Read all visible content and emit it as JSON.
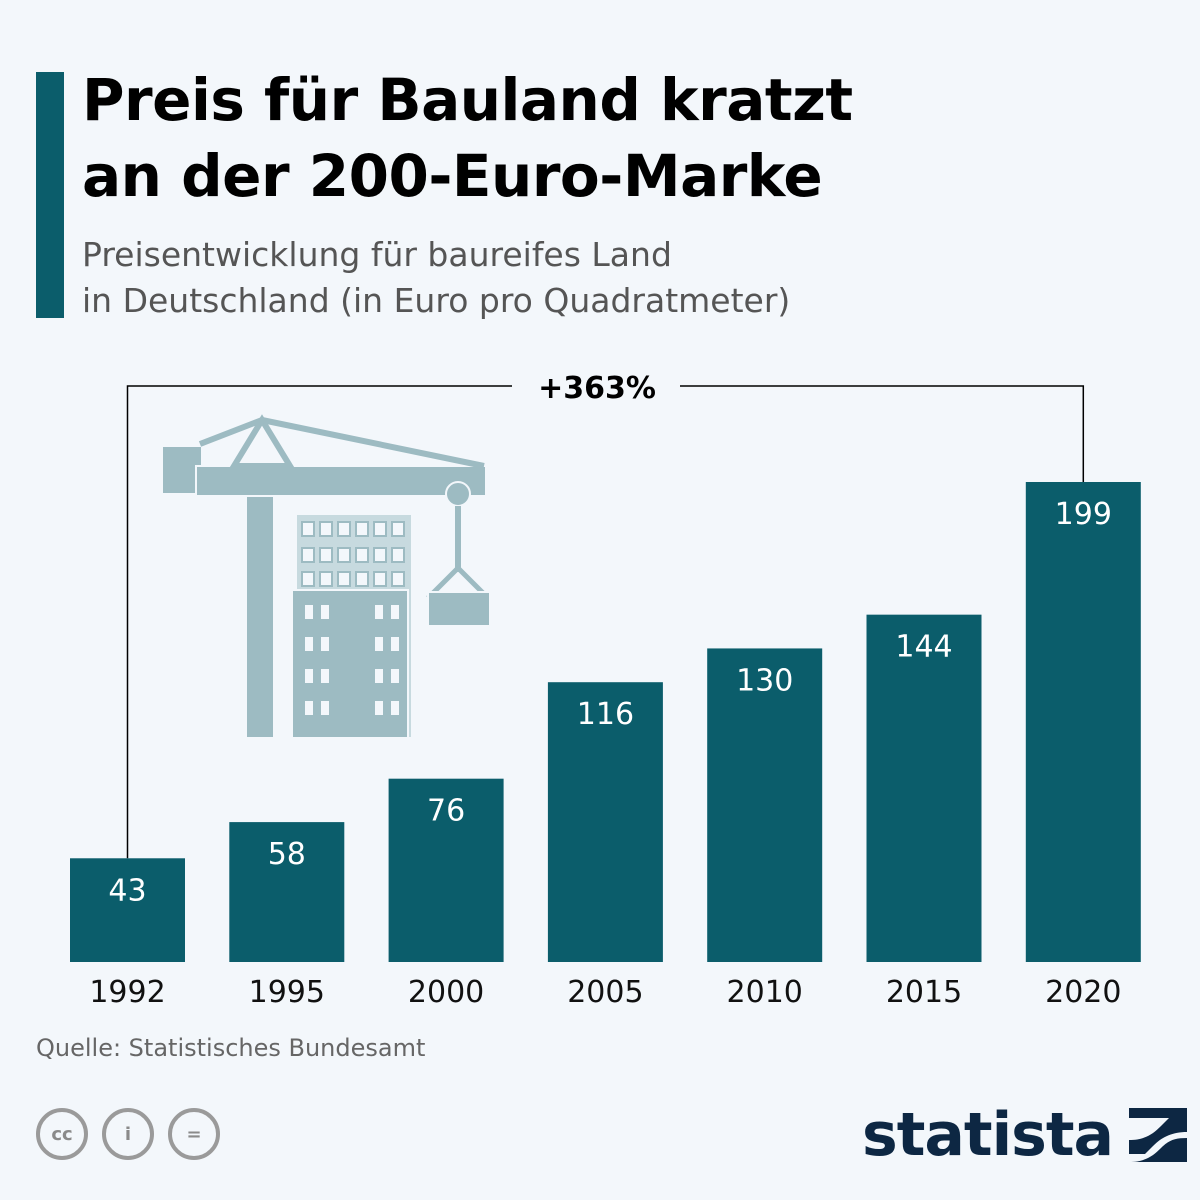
{
  "header": {
    "title_line1": "Preis für Bauland kratzt",
    "title_line2": "an der 200-Euro-Marke",
    "subtitle_line1": "Preisentwicklung für baureifes Land",
    "subtitle_line2": "in Deutschland (in Euro pro Quadratmeter)"
  },
  "chart_data": {
    "type": "bar",
    "title": "Preis für Bauland kratzt an der 200-Euro-Marke",
    "subtitle": "Preisentwicklung für baureifes Land in Deutschland (in Euro pro Quadratmeter)",
    "categories": [
      "1992",
      "1995",
      "2000",
      "2005",
      "2010",
      "2015",
      "2020"
    ],
    "values": [
      43,
      58,
      76,
      116,
      130,
      144,
      199
    ],
    "ylim": [
      0,
      199
    ],
    "grid": false,
    "annotation": "+363%",
    "bar_color": "#0b5d6b",
    "label_color": "#ffffff"
  },
  "footer": {
    "source": "Quelle: Statistisches Bundesamt",
    "license_icons": [
      "cc-icon",
      "attribution-icon",
      "no-derivatives-icon"
    ],
    "license_glyphs": [
      "cc",
      "i",
      "="
    ],
    "brand": "statista"
  },
  "colors": {
    "accent": "#0b5d6b",
    "background": "#f3f7fb",
    "illustration": "#9dbbc2",
    "brand": "#0d2743"
  }
}
